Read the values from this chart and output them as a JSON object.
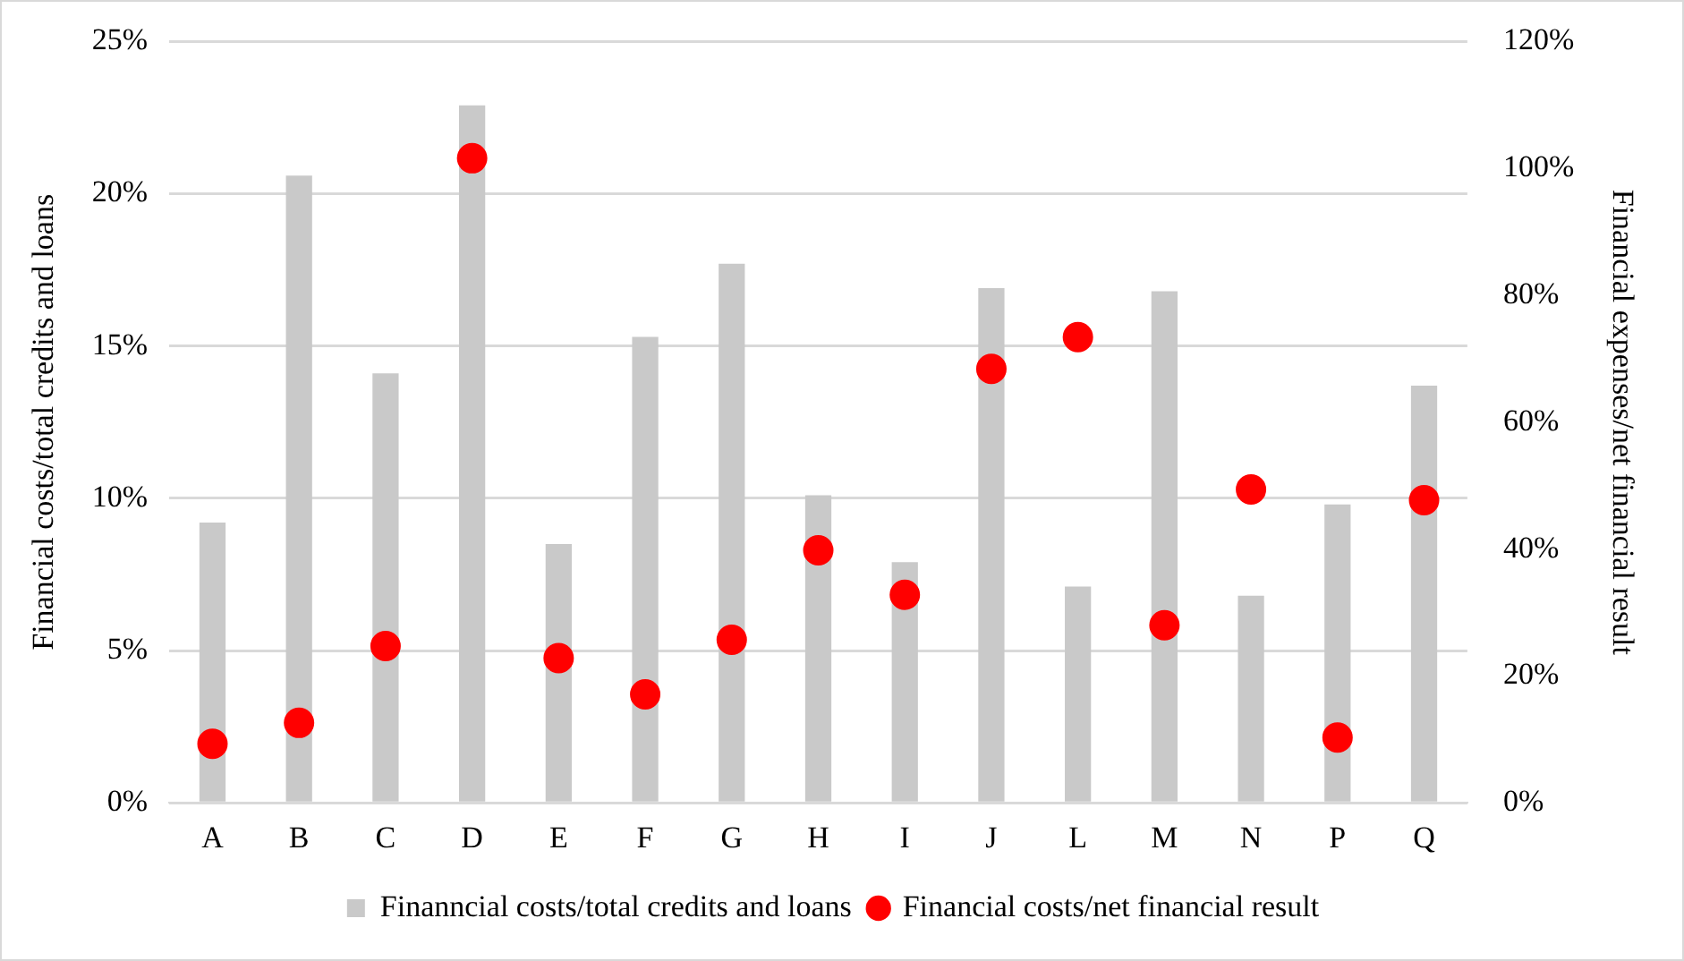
{
  "chart_data": {
    "type": "bar",
    "ylabel": "Financial costs/total credits and loans",
    "y2label": "Financial expenses/net financial result",
    "categories": [
      "A",
      "B",
      "C",
      "D",
      "E",
      "F",
      "G",
      "H",
      "I",
      "J",
      "L",
      "M",
      "N",
      "P",
      "Q"
    ],
    "series": [
      {
        "name": "Finanncial costs/total credits and loans",
        "color": "#c9c9c9",
        "values": [
          9.2,
          20.6,
          14.1,
          22.9,
          8.5,
          15.3,
          17.7,
          10.1,
          7.9,
          16.9,
          7.1,
          16.8,
          6.8,
          9.8,
          13.7
        ]
      },
      {
        "name": "Financial costs/net financial result",
        "type": "scatter",
        "axis": "y2",
        "color": "#ff0000",
        "values": [
          9.3,
          12.6,
          24.7,
          101.6,
          22.8,
          17.1,
          25.7,
          39.8,
          32.8,
          68.4,
          73.4,
          28.0,
          49.4,
          10.3,
          47.7
        ]
      }
    ],
    "ylim": [
      0,
      25
    ],
    "yticks": [
      {
        "value": 0,
        "label": "0%"
      },
      {
        "value": 5,
        "label": "5%"
      },
      {
        "value": 10,
        "label": "10%"
      },
      {
        "value": 15,
        "label": "15%"
      },
      {
        "value": 20,
        "label": "20%"
      },
      {
        "value": 25,
        "label": "25%"
      }
    ],
    "y2lim": [
      0,
      120
    ],
    "y2ticks": [
      {
        "value": 0,
        "label": "0%"
      },
      {
        "value": 20,
        "label": "20%"
      },
      {
        "value": 40,
        "label": "40%"
      },
      {
        "value": 60,
        "label": "60%"
      },
      {
        "value": 80,
        "label": "80%"
      },
      {
        "value": 100,
        "label": "100%"
      },
      {
        "value": 120,
        "label": "120%"
      }
    ],
    "grid": "y",
    "legend": "bottom",
    "marker": "circle"
  }
}
